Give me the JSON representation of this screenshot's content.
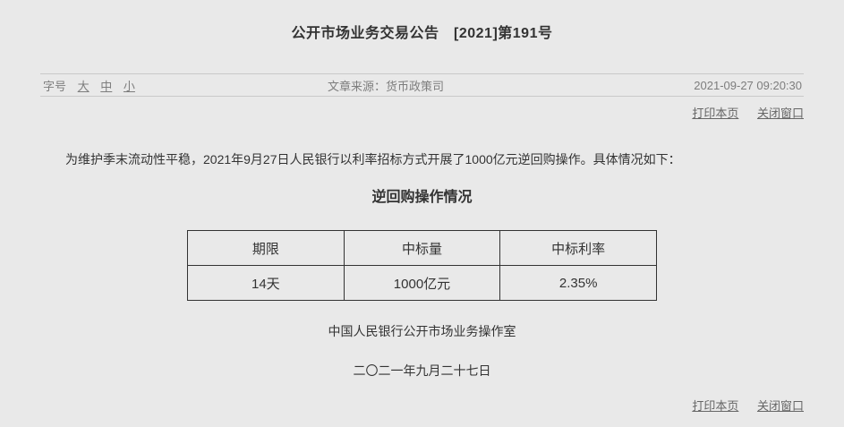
{
  "page": {
    "title": "公开市场业务交易公告　[2021]第191号",
    "meta": {
      "font_size_label": "字号",
      "font_size_options": [
        "大",
        "中",
        "小"
      ],
      "source_label": "文章来源：",
      "source_value": "货币政策司",
      "datetime": "2021-09-27 09:20:30"
    },
    "actions": {
      "print_label": "打印本页",
      "close_label": "关闭窗口"
    },
    "body": {
      "paragraph": "为维护季末流动性平稳，2021年9月27日人民银行以利率招标方式开展了1000亿元逆回购操作。具体情况如下：",
      "table_title": "逆回购操作情况",
      "signature": "中国人民银行公开市场业务操作室",
      "date_cn": "二〇二一年九月二十七日"
    },
    "table": {
      "headers": [
        "期限",
        "中标量",
        "中标利率"
      ],
      "rows": [
        [
          "14天",
          "1000亿元",
          "2.35%"
        ]
      ]
    },
    "colors": {
      "background": "#e9e9e9",
      "text": "#333333",
      "muted_text": "#7d7d7d",
      "link": "#666666",
      "divider": "#c9c9c9",
      "table_border": "#333333"
    }
  }
}
